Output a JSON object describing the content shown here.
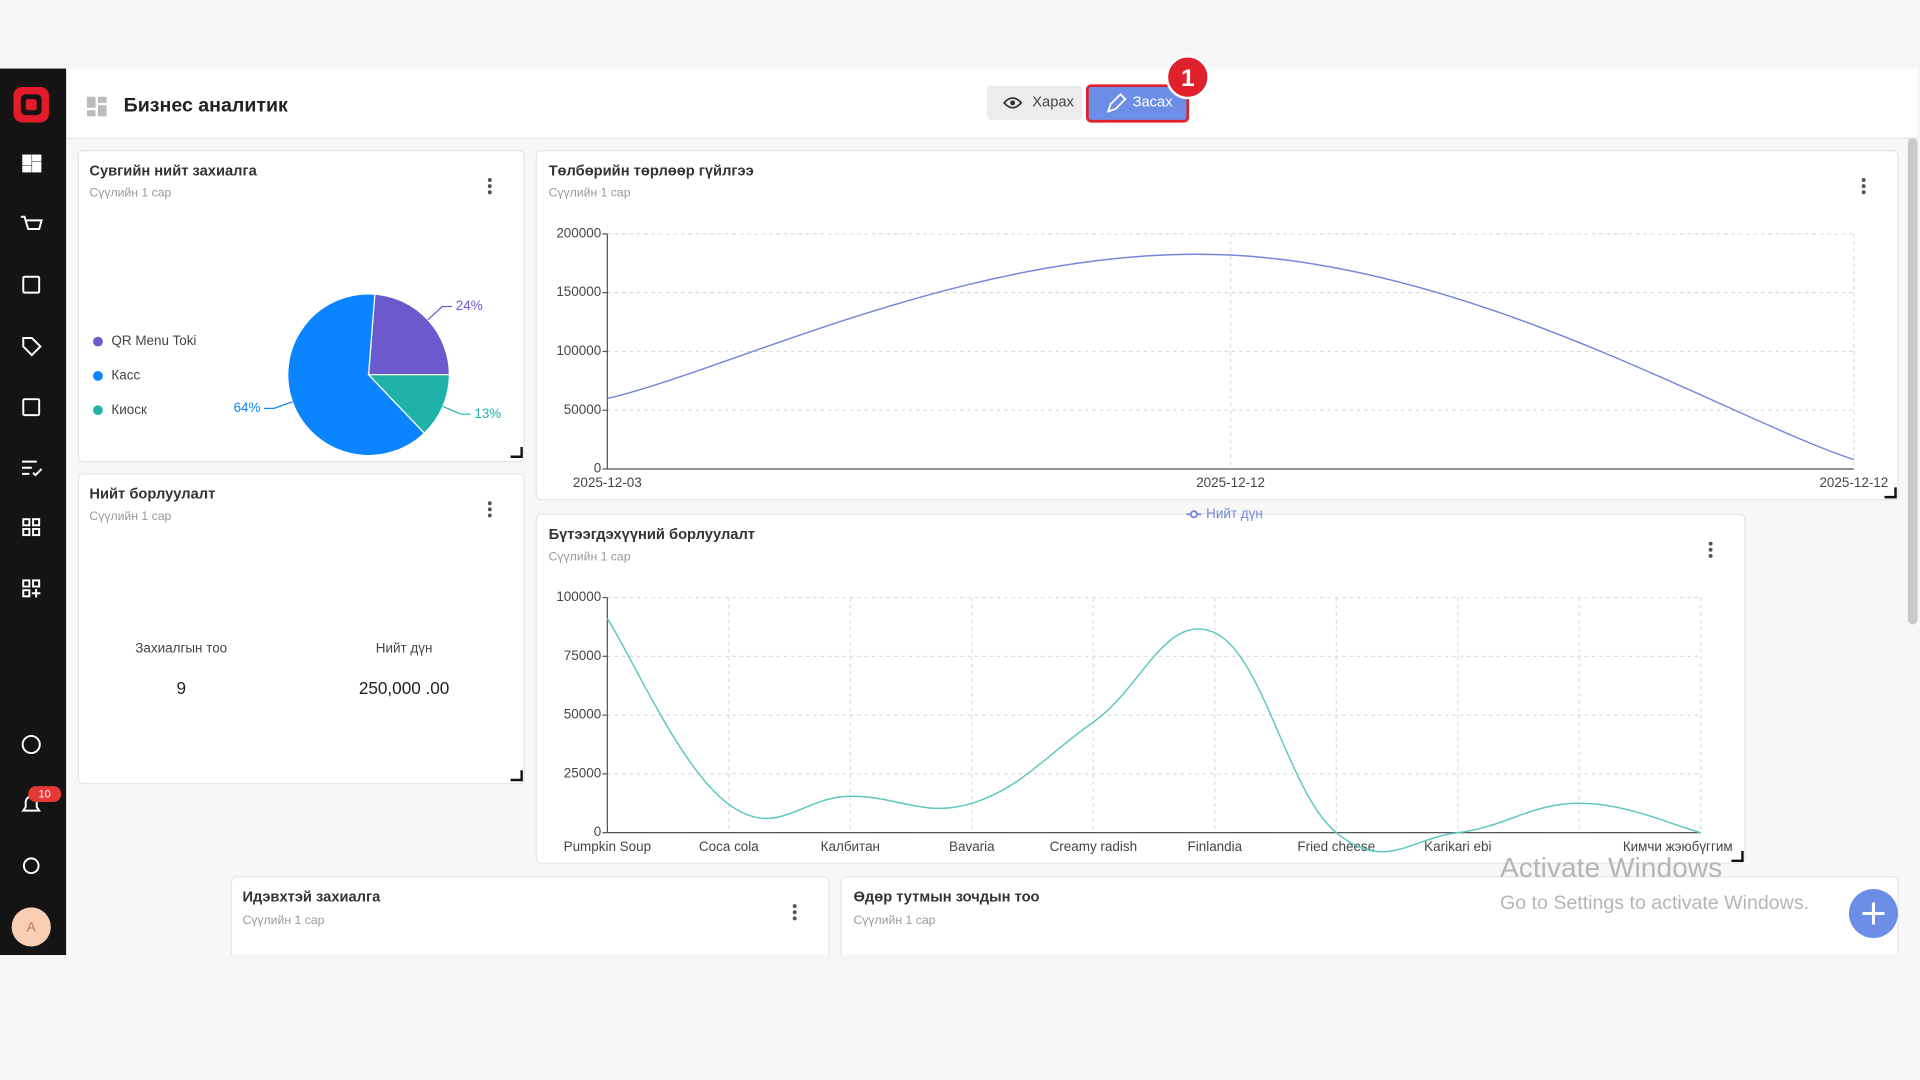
{
  "header": {
    "title": "Бизнес аналитик",
    "view_button": "Харах",
    "edit_button": "Засах",
    "step_badge": "1"
  },
  "sidebar": {
    "notification_count": "10",
    "avatar": "A"
  },
  "summary": {
    "title": "Нийт борлуулалт",
    "subtitle": "Сүүлийн 1 сар",
    "labels": [
      "Захиалгын тоо",
      "Нийт дүн"
    ],
    "values": [
      "9",
      "250,000 .00"
    ]
  },
  "bottom_cards": [
    {
      "title": "Идэвхтэй захиалга",
      "subtitle": "Сүүлийн 1 сар"
    },
    {
      "title": "Өдөр тутмын зочдын тоо",
      "subtitle": "Сүүлийн 1 сар"
    }
  ],
  "watermark": {
    "title": "Activate Windows",
    "text": "Go to Settings to activate Windows."
  },
  "chart_data": [
    {
      "type": "pie",
      "title": "Сувгийн нийт захиалга",
      "subtitle": "Сүүлийн 1 сар",
      "categories": [
        "QR Menu Toki",
        "Касс",
        "Киоск"
      ],
      "values": [
        24,
        64,
        13
      ],
      "value_labels": [
        "24%",
        "64%",
        "13%"
      ],
      "colors": [
        "#6a5acd",
        "#0a84ff",
        "#20b2aa"
      ]
    },
    {
      "type": "line",
      "title": "Төлбөрийн төрлөөр гүйлгээ",
      "subtitle": "Сүүлийн 1 сар",
      "categories": [
        "2025-12-03",
        "2025-12-12",
        "2025-12-12"
      ],
      "series": [
        {
          "name": "Нийт дүн",
          "color": "#7487dc",
          "values": [
            60000,
            182000,
            8000
          ]
        }
      ],
      "ylim": [
        0,
        200000
      ],
      "yticks": [
        0,
        50000,
        100000,
        150000,
        200000
      ],
      "grid": true
    },
    {
      "type": "line",
      "title": "Бүтээгдэхүүний борлуулалт",
      "subtitle": "Сүүлийн 1 сар",
      "categories": [
        "Pumpkin Soup",
        "Coca cola",
        "Калбитан",
        "Bavaria",
        "Creamy radish",
        "Finlandia",
        "Fried cheese",
        "Karikari ebi",
        null,
        "Кимчи жэюбүггим"
      ],
      "series": [
        {
          "name": "Нийт дүн",
          "color": "#5cc8c0",
          "values": [
            91000,
            12000,
            15500,
            12500,
            47000,
            85000,
            0,
            0,
            12500,
            0
          ]
        }
      ],
      "ylim": [
        0,
        100000
      ],
      "yticks": [
        0,
        25000,
        50000,
        75000,
        100000
      ],
      "grid": true
    }
  ]
}
